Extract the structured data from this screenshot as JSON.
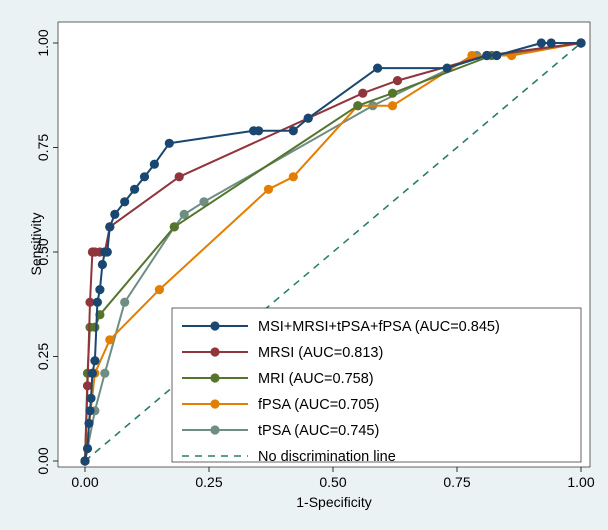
{
  "chart_data": {
    "type": "line",
    "title": "",
    "xlabel": "1-Specificity",
    "ylabel": "Sensitivity",
    "xlim": [
      0,
      1
    ],
    "ylim": [
      0,
      1
    ],
    "xticks": [
      "0.00",
      "0.25",
      "0.50",
      "0.75",
      "1.00"
    ],
    "yticks": [
      "0.00",
      "0.25",
      "0.50",
      "0.75",
      "1.00"
    ],
    "grid": false,
    "legend_position": "bottom-right",
    "series": [
      {
        "name": "MSI+MRSI+tPSA+fPSA (AUC=0.845)",
        "color": "#1a476f",
        "x": [
          0,
          0.005,
          0.008,
          0.01,
          0.012,
          0.015,
          0.02,
          0.025,
          0.03,
          0.035,
          0.04,
          0.045,
          0.05,
          0.06,
          0.08,
          0.1,
          0.12,
          0.14,
          0.17,
          0.34,
          0.35,
          0.42,
          0.45,
          0.59,
          0.73,
          0.81,
          0.83,
          0.92,
          0.94,
          1.0
        ],
        "y": [
          0,
          0.03,
          0.09,
          0.12,
          0.15,
          0.21,
          0.24,
          0.38,
          0.41,
          0.47,
          0.5,
          0.5,
          0.56,
          0.59,
          0.62,
          0.65,
          0.68,
          0.71,
          0.76,
          0.79,
          0.79,
          0.79,
          0.82,
          0.94,
          0.94,
          0.97,
          0.97,
          1.0,
          1.0,
          1.0
        ]
      },
      {
        "name": "MRSI (AUC=0.813)",
        "color": "#90353b",
        "x": [
          0,
          0.005,
          0.01,
          0.015,
          0.02,
          0.03,
          0.04,
          0.05,
          0.19,
          0.45,
          0.56,
          0.63,
          0.81,
          1.0
        ],
        "y": [
          0,
          0.18,
          0.38,
          0.5,
          0.5,
          0.5,
          0.5,
          0.56,
          0.68,
          0.82,
          0.88,
          0.91,
          0.97,
          1.0
        ],
        "markers": [
          [
            0,
            0
          ],
          [
            0.005,
            0.18
          ],
          [
            0.01,
            0.38
          ],
          [
            0.015,
            0.5
          ],
          [
            0.02,
            0.5
          ],
          [
            0.03,
            0.5
          ],
          [
            0.04,
            0.5
          ],
          [
            0.05,
            0.56
          ],
          [
            0.19,
            0.68
          ],
          [
            0.45,
            0.82
          ],
          [
            0.56,
            0.88
          ],
          [
            0.63,
            0.91
          ],
          [
            0.81,
            0.97
          ],
          [
            1.0,
            1.0
          ]
        ]
      },
      {
        "name": "MRI (AUC=0.758)",
        "color": "#55752f",
        "x": [
          0,
          0.005,
          0.01,
          0.02,
          0.03,
          0.18,
          0.55,
          0.62,
          0.82,
          1.0
        ],
        "y": [
          0,
          0.21,
          0.32,
          0.32,
          0.35,
          0.56,
          0.85,
          0.88,
          0.97,
          1.0
        ]
      },
      {
        "name": "fPSA (AUC=0.705)",
        "color": "#e37e00",
        "x": [
          0,
          0.02,
          0.05,
          0.15,
          0.37,
          0.42,
          0.55,
          0.62,
          0.78,
          0.86,
          1.0
        ],
        "y": [
          0,
          0.21,
          0.29,
          0.41,
          0.65,
          0.68,
          0.85,
          0.85,
          0.97,
          0.97,
          1.0
        ]
      },
      {
        "name": "tPSA (AUC=0.745)",
        "color": "#6e8e84",
        "x": [
          0,
          0.02,
          0.04,
          0.08,
          0.18,
          0.2,
          0.24,
          0.58,
          0.79,
          0.83,
          1.0
        ],
        "y": [
          0,
          0.12,
          0.21,
          0.38,
          0.56,
          0.59,
          0.62,
          0.85,
          0.97,
          0.97,
          1.0
        ]
      },
      {
        "name": "No discrimination line",
        "color": "#2a7d6e",
        "style": "dashed",
        "x": [
          0,
          1
        ],
        "y": [
          0,
          1
        ]
      }
    ]
  }
}
